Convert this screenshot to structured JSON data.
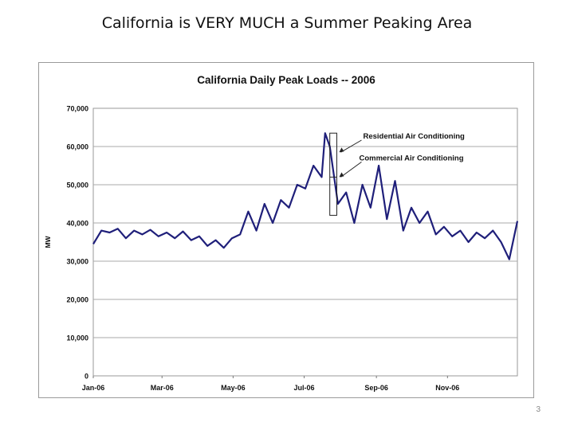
{
  "slide": {
    "title": "California is VERY MUCH a Summer Peaking Area",
    "page_number": "3"
  },
  "chart_data": {
    "type": "line",
    "title": "California Daily Peak Loads -- 2006",
    "xlabel": "",
    "ylabel": "MW",
    "ylim": [
      0,
      70000
    ],
    "yticks": [
      0,
      10000,
      20000,
      30000,
      40000,
      50000,
      60000,
      70000
    ],
    "ytick_labels": [
      "0",
      "10,000",
      "20,000",
      "30,000",
      "40,000",
      "50,000",
      "60,000",
      "70,000"
    ],
    "xlim": [
      "2006-01-01",
      "2006-12-31"
    ],
    "xticks": [
      "2006-01-01",
      "2006-03-01",
      "2006-05-01",
      "2006-07-01",
      "2006-09-01",
      "2006-11-01"
    ],
    "xtick_labels": [
      "Jan-06",
      "Mar-06",
      "May-06",
      "Jul-06",
      "Sep-06",
      "Nov-06"
    ],
    "grid": "horizontal",
    "line_color": "#1f1f7a",
    "series": [
      {
        "x": [
          "2006-01-01",
          "2006-01-08",
          "2006-01-15",
          "2006-01-22",
          "2006-01-29",
          "2006-02-05",
          "2006-02-12",
          "2006-02-19",
          "2006-02-26",
          "2006-03-05",
          "2006-03-12",
          "2006-03-19",
          "2006-03-26",
          "2006-04-02",
          "2006-04-09",
          "2006-04-16",
          "2006-04-23",
          "2006-04-30",
          "2006-05-07",
          "2006-05-14",
          "2006-05-21",
          "2006-05-28",
          "2006-06-04",
          "2006-06-11",
          "2006-06-18",
          "2006-06-25",
          "2006-07-02",
          "2006-07-09",
          "2006-07-16",
          "2006-07-19",
          "2006-07-23",
          "2006-07-30",
          "2006-08-06",
          "2006-08-13",
          "2006-08-20",
          "2006-08-27",
          "2006-09-03",
          "2006-09-10",
          "2006-09-17",
          "2006-09-24",
          "2006-10-01",
          "2006-10-08",
          "2006-10-15",
          "2006-10-22",
          "2006-10-29",
          "2006-11-05",
          "2006-11-12",
          "2006-11-19",
          "2006-11-26",
          "2006-12-03",
          "2006-12-10",
          "2006-12-17",
          "2006-12-24",
          "2006-12-31"
        ],
        "values": [
          34500,
          38000,
          37500,
          38500,
          36000,
          38000,
          37000,
          38200,
          36500,
          37500,
          36000,
          37800,
          35500,
          36500,
          34000,
          35500,
          33500,
          36000,
          37000,
          43000,
          38000,
          45000,
          40000,
          46000,
          44000,
          50000,
          49000,
          55000,
          52000,
          63500,
          60000,
          45000,
          48000,
          40000,
          50000,
          44000,
          55000,
          41000,
          51000,
          38000,
          44000,
          40000,
          43000,
          37000,
          39000,
          36500,
          38000,
          35000,
          37500,
          36000,
          38000,
          35000,
          30500,
          40500
        ]
      }
    ],
    "annotations": [
      {
        "text": "Residential Air Conditioning",
        "points_to": "2006-07-25"
      },
      {
        "text": "Commercial Air Conditioning",
        "points_to": "2006-07-25"
      }
    ]
  }
}
